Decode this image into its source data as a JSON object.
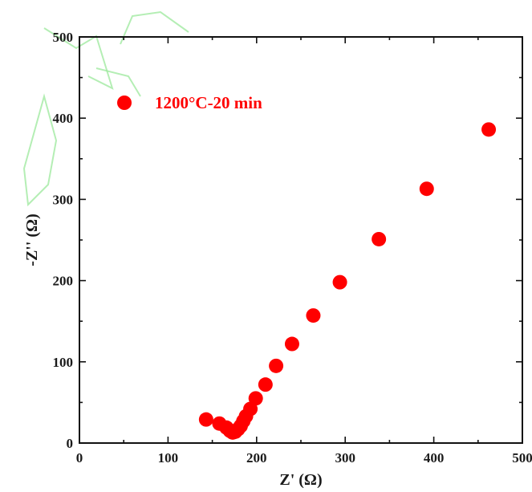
{
  "chart_data": {
    "type": "scatter",
    "title": "",
    "xlabel": "Z' (Ω)",
    "ylabel": "-Z'' (Ω)",
    "xlim": [
      0,
      500
    ],
    "ylim": [
      0,
      500
    ],
    "x_ticks": [
      0,
      100,
      200,
      300,
      400,
      500
    ],
    "y_ticks": [
      0,
      100,
      200,
      300,
      400,
      500
    ],
    "x_minor_ticks": [
      50,
      150,
      250,
      350,
      450
    ],
    "y_minor_ticks": [
      50,
      150,
      250,
      350,
      450
    ],
    "grid": false,
    "legend_position": "top-left",
    "series": [
      {
        "name": "1200°C-20 min",
        "color": "#ff0000",
        "marker": "circle",
        "x": [
          143,
          158,
          166,
          170,
          173,
          176,
          179,
          182,
          185,
          188,
          193,
          199,
          210,
          222,
          240,
          264,
          294,
          338,
          392,
          462
        ],
        "y": [
          29,
          24,
          19,
          15,
          13,
          14,
          17,
          21,
          27,
          33,
          42,
          55,
          72,
          95,
          122,
          157,
          198,
          251,
          313,
          386
        ]
      }
    ]
  }
}
